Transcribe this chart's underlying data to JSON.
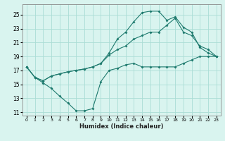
{
  "xlabel": "Humidex (Indice chaleur)",
  "bg_color": "#d9f4ef",
  "grid_color": "#aaddd5",
  "line_color": "#1e7a6e",
  "xlim": [
    -0.5,
    23.5
  ],
  "ylim": [
    10.5,
    26.5
  ],
  "xticks": [
    0,
    1,
    2,
    3,
    4,
    5,
    6,
    7,
    8,
    9,
    10,
    11,
    12,
    13,
    14,
    15,
    16,
    17,
    18,
    19,
    20,
    21,
    22,
    23
  ],
  "yticks": [
    11,
    13,
    15,
    17,
    19,
    21,
    23,
    25
  ],
  "line1_x": [
    0,
    1,
    2,
    3,
    4,
    5,
    6,
    7,
    8,
    9,
    10,
    11,
    12,
    13,
    14,
    15,
    16,
    17,
    18,
    19,
    20,
    21,
    22,
    23
  ],
  "line1_y": [
    17.5,
    16.0,
    15.2,
    14.4,
    13.3,
    12.3,
    11.2,
    11.2,
    11.5,
    15.4,
    17.0,
    17.3,
    17.8,
    18.0,
    17.5,
    17.5,
    17.5,
    17.5,
    17.5,
    18.0,
    18.5,
    19.0,
    19.0,
    19.0
  ],
  "line2_x": [
    0,
    1,
    2,
    3,
    4,
    5,
    6,
    7,
    8,
    9,
    10,
    11,
    12,
    13,
    14,
    15,
    16,
    17,
    18,
    19,
    20,
    21,
    22,
    23
  ],
  "line2_y": [
    17.5,
    16.0,
    15.5,
    16.2,
    16.5,
    16.8,
    17.0,
    17.2,
    17.5,
    18.0,
    19.2,
    20.0,
    20.5,
    21.5,
    22.0,
    22.5,
    22.5,
    23.5,
    24.5,
    22.5,
    22.0,
    20.5,
    20.0,
    19.0
  ],
  "line3_x": [
    0,
    1,
    2,
    3,
    4,
    5,
    6,
    7,
    8,
    9,
    10,
    11,
    12,
    13,
    14,
    15,
    16,
    17,
    18,
    19,
    20,
    21,
    22,
    23
  ],
  "line3_y": [
    17.5,
    16.0,
    15.5,
    16.2,
    16.5,
    16.8,
    17.0,
    17.2,
    17.5,
    18.0,
    19.5,
    21.5,
    22.5,
    24.0,
    25.3,
    25.5,
    25.5,
    24.2,
    24.7,
    23.2,
    22.5,
    20.3,
    19.5,
    19.0
  ]
}
